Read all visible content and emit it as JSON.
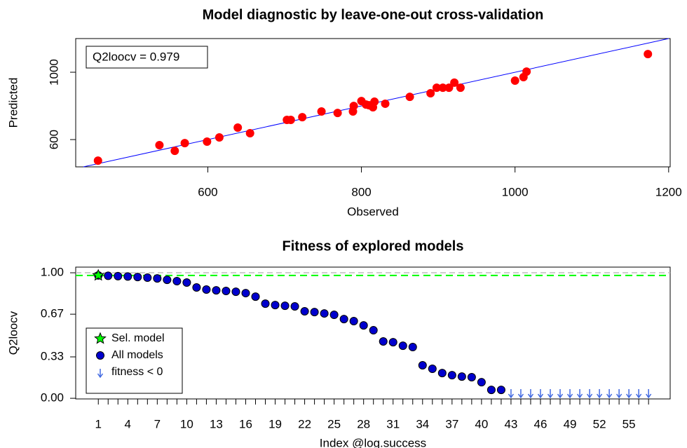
{
  "chart_data": [
    {
      "type": "scatter",
      "title": "Model diagnostic by leave-one-out cross-validation",
      "xlabel": "Observed",
      "ylabel": "Predicted",
      "annotation": "Q2loocv = 0.979",
      "xlim": [
        428,
        1202
      ],
      "ylim": [
        438,
        1200
      ],
      "xticks": [
        600,
        800,
        1000,
        1200
      ],
      "yticks": [
        600,
        1000
      ],
      "identity_line_color": "#0000ff",
      "series": [
        {
          "color": "#ff0000",
          "marker": "circle",
          "x": [
            457,
            537,
            557,
            570,
            599,
            615,
            639,
            655,
            703,
            708,
            723,
            748,
            769,
            789,
            790,
            800,
            806,
            810,
            815,
            817,
            831,
            863,
            890,
            898,
            906,
            914,
            921,
            929,
            1000,
            1011,
            1015,
            1173
          ],
          "values": [
            475,
            567,
            533,
            579,
            588,
            613,
            671,
            638,
            717,
            717,
            733,
            767,
            758,
            767,
            800,
            829,
            808,
            804,
            792,
            825,
            813,
            854,
            875,
            908,
            908,
            908,
            938,
            908,
            950,
            971,
            1004,
            1108
          ]
        }
      ]
    },
    {
      "type": "scatter",
      "title": "Fitness of explored models",
      "xlabel": "Index @log.success",
      "ylabel": "Q2loocv",
      "xlim": [
        -1.3,
        59.2
      ],
      "ylim": [
        -0.005,
        1.045
      ],
      "xticks": [
        1,
        4,
        7,
        10,
        13,
        16,
        19,
        22,
        25,
        28,
        31,
        34,
        37,
        40,
        43,
        46,
        49,
        52,
        55
      ],
      "minor_xticks": [
        1,
        2,
        3,
        4,
        5,
        6,
        7,
        8,
        9,
        10,
        11,
        12,
        13,
        14,
        15,
        16,
        17,
        18,
        19,
        20,
        21,
        22,
        23,
        24,
        25,
        26,
        27,
        28,
        29,
        30,
        31,
        32,
        33,
        34,
        35,
        36,
        37,
        38,
        39,
        40,
        41,
        42,
        43,
        44,
        45,
        46,
        47,
        48,
        49,
        50,
        51,
        52,
        53,
        54,
        55,
        56,
        57
      ],
      "yticks": [
        {
          "value": 1,
          "label": "1.00"
        },
        0.67,
        0.33,
        {
          "value": 0,
          "label": "0.00"
        }
      ],
      "reference_line": 1,
      "reference_line_color": "#bebebe",
      "legend": "left",
      "series": [
        {
          "name": "Sel. model",
          "color": "#00ff00",
          "marker": "star",
          "hline": true,
          "x": [
            1
          ],
          "values": [
            0.979
          ]
        },
        {
          "name": "All models",
          "color": "#0000cd",
          "marker": "circle",
          "x": [
            1,
            2,
            3,
            4,
            5,
            6,
            7,
            8,
            9,
            10,
            11,
            12,
            13,
            14,
            15,
            16,
            17,
            18,
            19,
            20,
            21,
            22,
            23,
            24,
            25,
            26,
            27,
            28,
            29,
            30,
            31,
            32,
            33,
            34,
            35,
            36,
            37,
            38,
            39,
            40,
            41,
            42
          ],
          "values": [
            0.979,
            0.976,
            0.973,
            0.97,
            0.966,
            0.961,
            0.955,
            0.944,
            0.933,
            0.922,
            0.883,
            0.866,
            0.86,
            0.855,
            0.849,
            0.838,
            0.81,
            0.754,
            0.743,
            0.737,
            0.732,
            0.693,
            0.687,
            0.676,
            0.665,
            0.631,
            0.615,
            0.581,
            0.542,
            0.453,
            0.447,
            0.419,
            0.408,
            0.263,
            0.235,
            0.201,
            0.184,
            0.173,
            0.168,
            0.128,
            0.067,
            0.067
          ]
        },
        {
          "name": "fitness < 0",
          "color": "#4169e1",
          "marker": "arrow",
          "x": [
            43,
            44,
            45,
            46,
            47,
            48,
            49,
            50,
            51,
            52,
            53,
            54,
            55,
            56,
            57
          ]
        }
      ]
    }
  ]
}
